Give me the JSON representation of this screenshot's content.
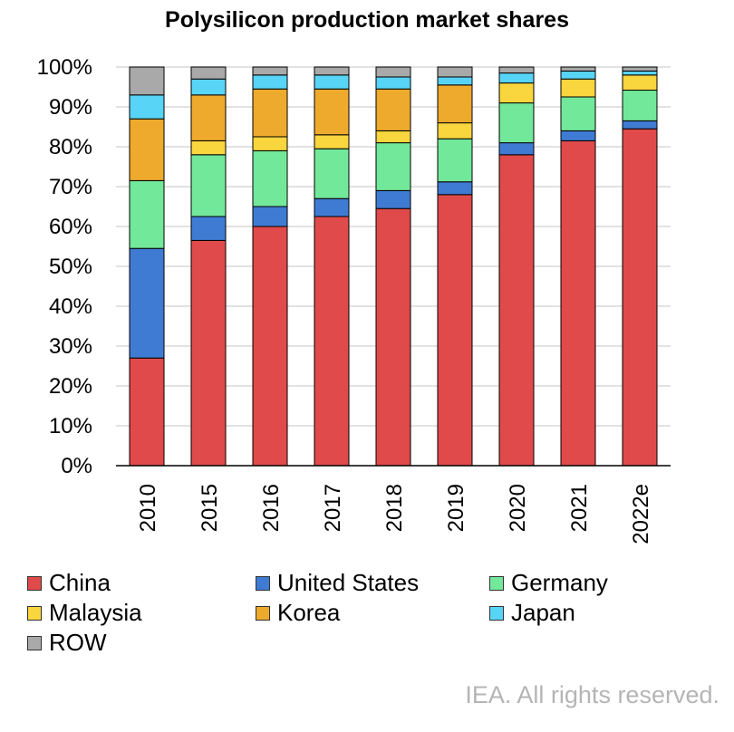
{
  "chart_data": {
    "type": "bar",
    "stacked": true,
    "title": "Polysilicon production market shares",
    "xlabel": "",
    "ylabel": "",
    "ylim": [
      0,
      100
    ],
    "yticks": [
      "0%",
      "10%",
      "20%",
      "30%",
      "40%",
      "50%",
      "60%",
      "70%",
      "80%",
      "90%",
      "100%"
    ],
    "grid": true,
    "legend_position": "bottom",
    "categories": [
      "2010",
      "2015",
      "2016",
      "2017",
      "2018",
      "2019",
      "2020",
      "2021",
      "2022e"
    ],
    "series": [
      {
        "name": "China",
        "color": "#e04a4a",
        "values": [
          27,
          56.5,
          60,
          62.5,
          64.5,
          68,
          78,
          81.5,
          84.5
        ]
      },
      {
        "name": "United States",
        "color": "#3f7bd3",
        "values": [
          27.5,
          6,
          5,
          4.5,
          4.5,
          3.2,
          3,
          2.5,
          2
        ]
      },
      {
        "name": "Germany",
        "color": "#72e89a",
        "values": [
          17,
          15.5,
          14,
          12.5,
          12,
          10.8,
          10,
          8.5,
          7.7
        ]
      },
      {
        "name": "Malaysia",
        "color": "#f9d53e",
        "values": [
          0,
          3.5,
          3.5,
          3.5,
          3,
          4,
          5,
          4.5,
          3.8
        ]
      },
      {
        "name": "Korea",
        "color": "#eeaa2c",
        "values": [
          15.5,
          11.5,
          12,
          11.5,
          10.5,
          9.5,
          0,
          0,
          0
        ]
      },
      {
        "name": "Japan",
        "color": "#58d4f6",
        "values": [
          6,
          4,
          3.5,
          3.5,
          3,
          2,
          2.5,
          2,
          1
        ]
      },
      {
        "name": "ROW",
        "color": "#a9a9a9",
        "values": [
          7,
          3,
          2,
          2,
          2.5,
          2.5,
          1.5,
          1,
          1
        ]
      }
    ]
  },
  "footer": {
    "copyright": "IEA. All rights reserved."
  }
}
